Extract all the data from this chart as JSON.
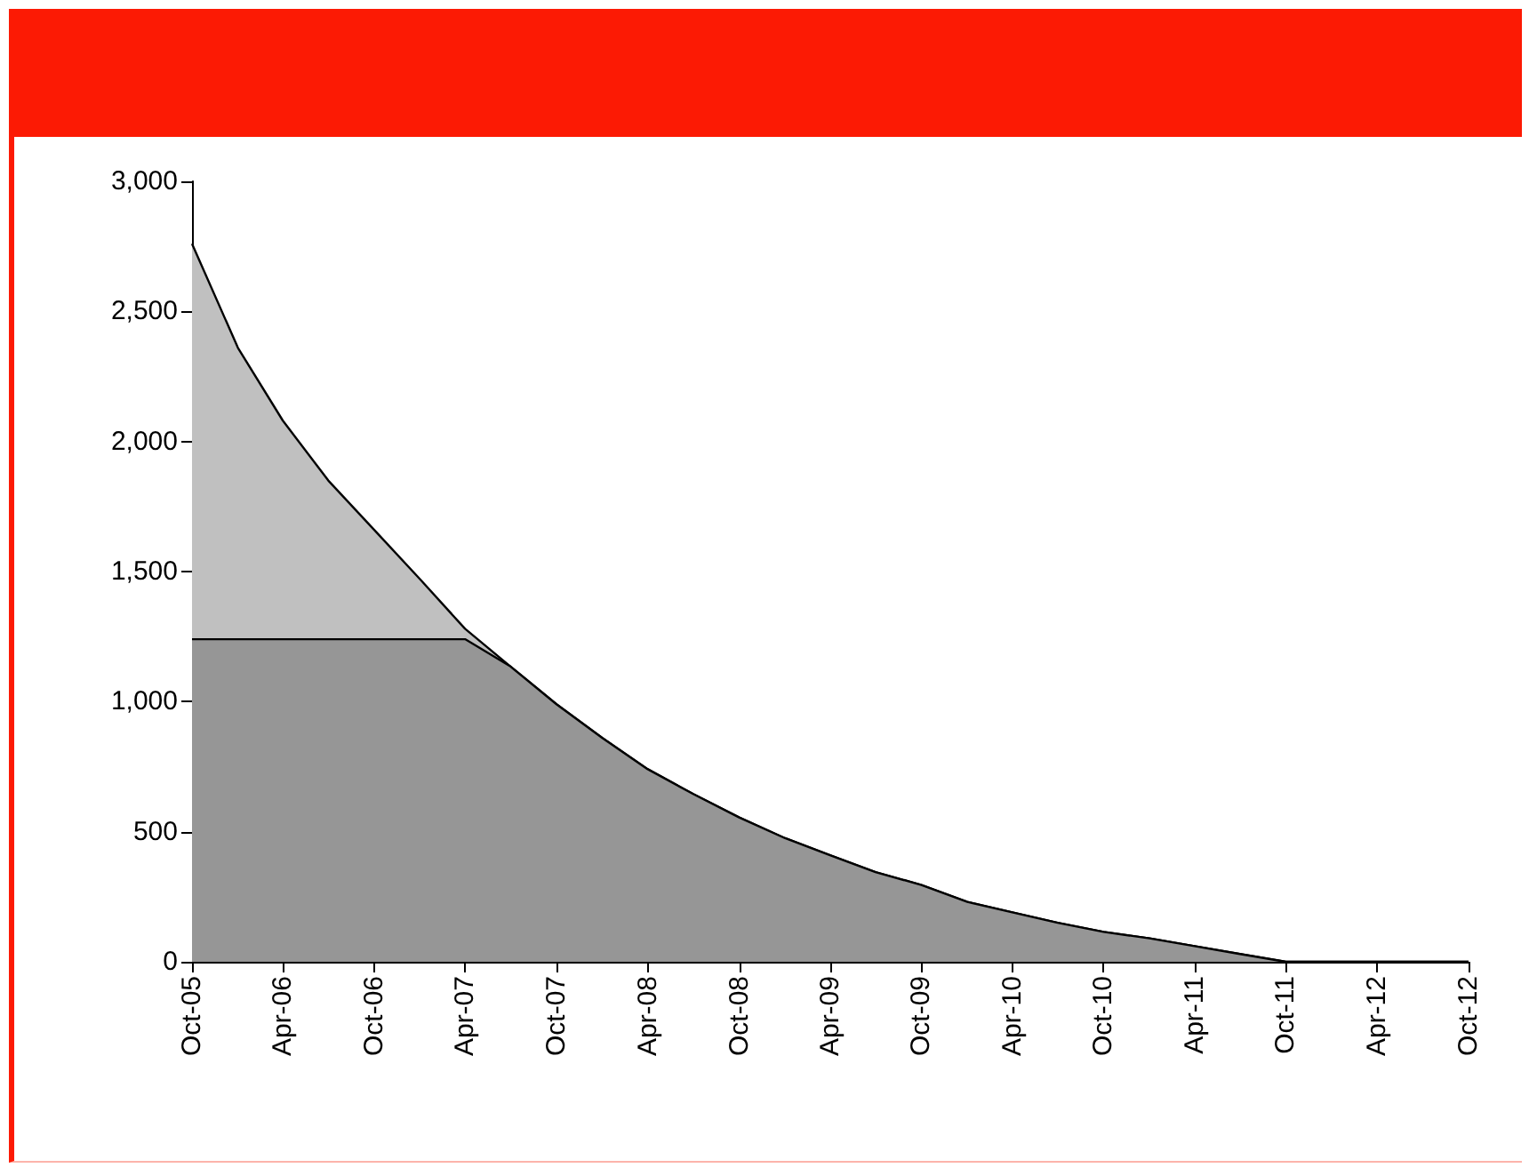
{
  "chart_data": {
    "type": "area",
    "marker": "none",
    "grid": false,
    "x": [
      "2005-10",
      "2006-01",
      "2006-04",
      "2006-07",
      "2006-10",
      "2007-01",
      "2007-04",
      "2007-07",
      "2007-10",
      "2008-01",
      "2008-04",
      "2008-07",
      "2008-10",
      "2009-01",
      "2009-04",
      "2009-07",
      "2009-10",
      "2010-01",
      "2010-04",
      "2010-07",
      "2010-10",
      "2011-01",
      "2011-04",
      "2011-07",
      "2011-10",
      "2012-01",
      "2012-04",
      "2012-07",
      "2012-10"
    ],
    "series": [
      {
        "color": "#c0c0c0",
        "values": [
          2760,
          2360,
          2080,
          1850,
          1660,
          1470,
          1280,
          1135,
          990,
          860,
          740,
          645,
          555,
          475,
          410,
          345,
          295,
          230,
          190,
          150,
          115,
          90,
          60,
          30,
          0,
          0,
          0,
          0,
          0
        ]
      },
      {
        "color": "#969696",
        "values": [
          1240,
          1240,
          1240,
          1240,
          1240,
          1240,
          1240,
          1135,
          990,
          860,
          740,
          645,
          555,
          475,
          410,
          345,
          295,
          230,
          190,
          150,
          115,
          90,
          60,
          30,
          0,
          0,
          0,
          0,
          0
        ]
      }
    ],
    "xlim": [
      "2005-10",
      "2012-10"
    ],
    "xticks": [
      {
        "value": "2005-10",
        "label": "Oct-05"
      },
      {
        "value": "2006-04",
        "label": "Apr-06"
      },
      {
        "value": "2006-10",
        "label": "Oct-06"
      },
      {
        "value": "2007-04",
        "label": "Apr-07"
      },
      {
        "value": "2007-10",
        "label": "Oct-07"
      },
      {
        "value": "2008-04",
        "label": "Apr-08"
      },
      {
        "value": "2008-10",
        "label": "Oct-08"
      },
      {
        "value": "2009-04",
        "label": "Apr-09"
      },
      {
        "value": "2009-10",
        "label": "Oct-09"
      },
      {
        "value": "2010-04",
        "label": "Apr-10"
      },
      {
        "value": "2010-10",
        "label": "Oct-10"
      },
      {
        "value": "2011-04",
        "label": "Apr-11"
      },
      {
        "value": "2011-10",
        "label": "Oct-11"
      },
      {
        "value": "2012-04",
        "label": "Apr-12"
      },
      {
        "value": "2012-10",
        "label": "Oct-12"
      }
    ],
    "ylim": [
      0,
      3000
    ],
    "yticks": [
      {
        "value": 0,
        "label": "0"
      },
      {
        "value": 500,
        "label": "500"
      },
      {
        "value": 1000,
        "label": "1,000"
      },
      {
        "value": 1500,
        "label": "1,500"
      },
      {
        "value": 2000,
        "label": "2,000"
      },
      {
        "value": 2500,
        "label": "2,500"
      },
      {
        "value": 3000,
        "label": "3,000"
      }
    ]
  }
}
